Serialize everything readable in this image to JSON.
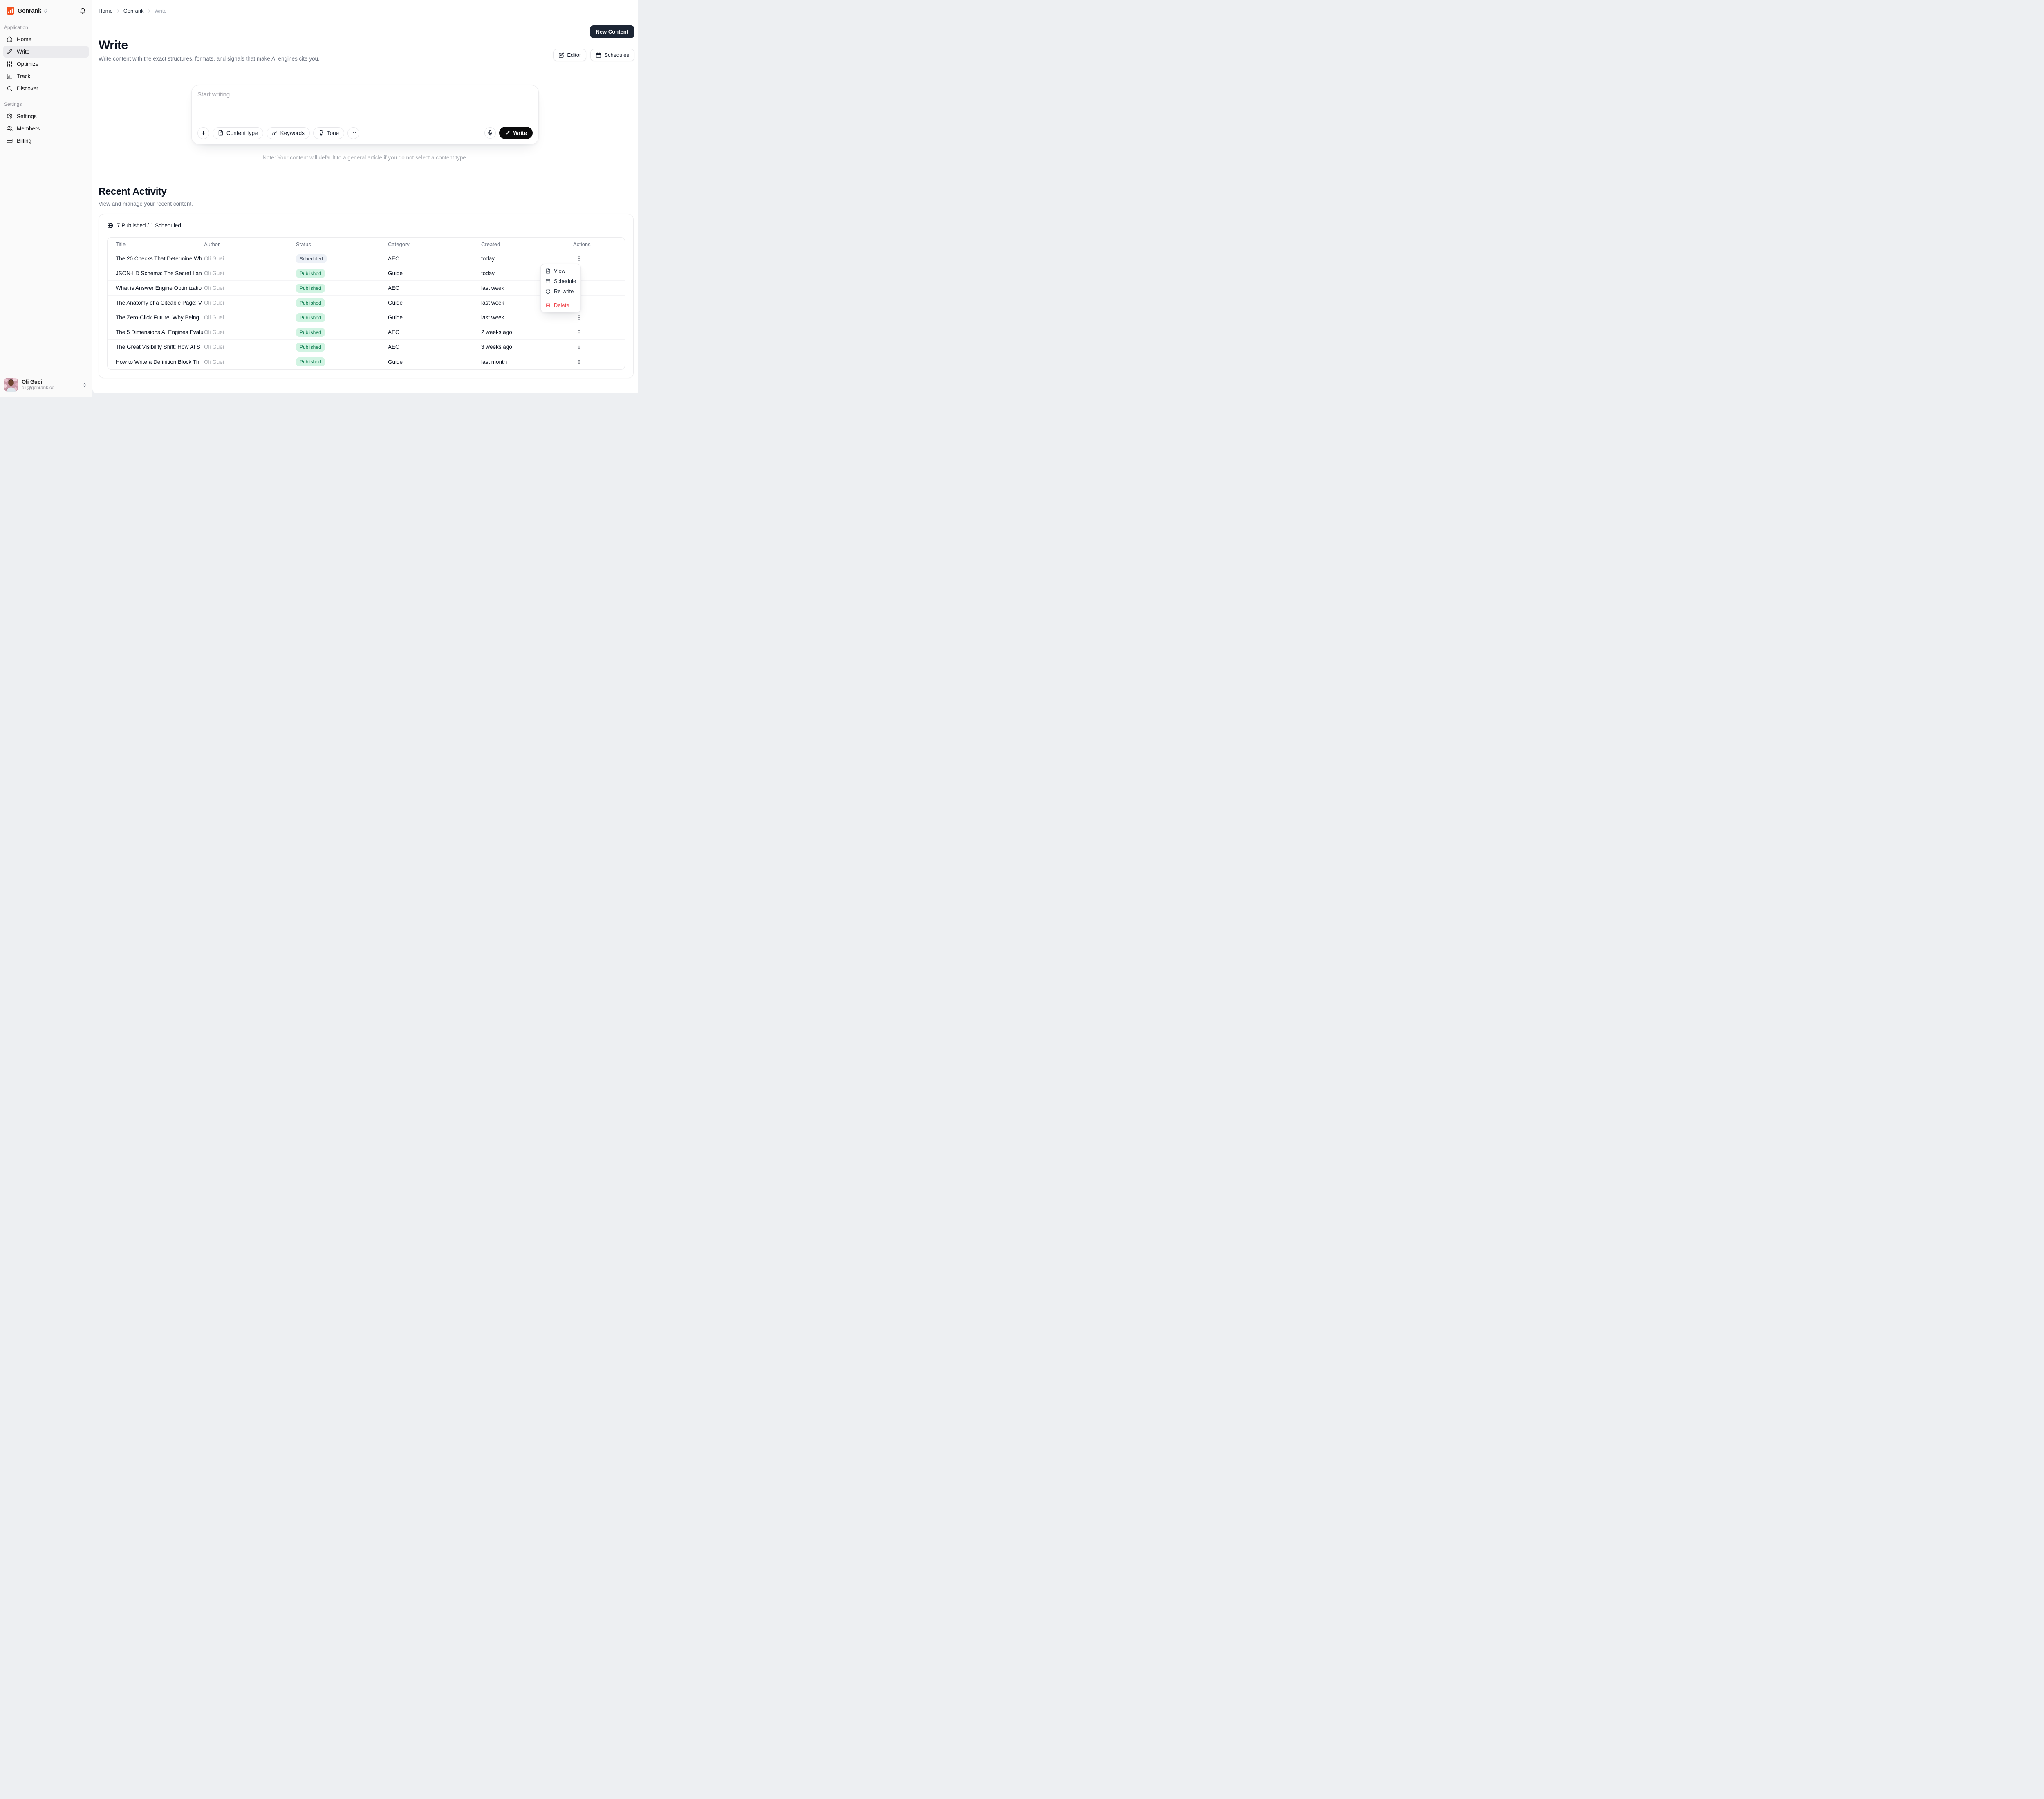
{
  "brand": {
    "name": "Genrank",
    "logo_color": "#f4511e"
  },
  "sidebar": {
    "sections": [
      {
        "label": "Application",
        "items": [
          {
            "label": "Home",
            "icon": "home",
            "active": false
          },
          {
            "label": "Write",
            "icon": "pen",
            "active": true
          },
          {
            "label": "Optimize",
            "icon": "sliders",
            "active": false
          },
          {
            "label": "Track",
            "icon": "chart",
            "active": false
          },
          {
            "label": "Discover",
            "icon": "search",
            "active": false
          }
        ]
      },
      {
        "label": "Settings",
        "items": [
          {
            "label": "Settings",
            "icon": "gear",
            "active": false
          },
          {
            "label": "Members",
            "icon": "users",
            "active": false
          },
          {
            "label": "Billing",
            "icon": "credit-card",
            "active": false
          }
        ]
      }
    ],
    "user": {
      "name": "Oli Guei",
      "email": "oli@genrank.co"
    }
  },
  "breadcrumb": [
    "Home",
    "Genrank",
    "Write"
  ],
  "header": {
    "new_content_label": "New Content",
    "editor_label": "Editor",
    "schedules_label": "Schedules"
  },
  "page": {
    "title": "Write",
    "subtitle": "Write content with the exact structures, formats, and signals that make AI engines cite you."
  },
  "composer": {
    "placeholder": "Start writing...",
    "content_type_label": "Content type",
    "keywords_label": "Keywords",
    "tone_label": "Tone",
    "write_label": "Write",
    "note": "Note: Your content will default to a general article if you do not select a content type."
  },
  "recent": {
    "title": "Recent Activity",
    "subtitle": "View and manage your recent content.",
    "summary": "7 Published / 1 Scheduled",
    "columns": [
      "Title",
      "Author",
      "Status",
      "Category",
      "Created",
      "Actions"
    ],
    "rows": [
      {
        "title": "The 20 Checks That Determine Wh",
        "author": "Oli Guei",
        "status": "Scheduled",
        "category": "AEO",
        "created": "today"
      },
      {
        "title": "JSON-LD Schema: The Secret Lan",
        "author": "Oli Guei",
        "status": "Published",
        "category": "Guide",
        "created": "today"
      },
      {
        "title": "What is Answer Engine Optimizatio",
        "author": "Oli Guei",
        "status": "Published",
        "category": "AEO",
        "created": "last week"
      },
      {
        "title": "The Anatomy of a Citeable Page: V",
        "author": "Oli Guei",
        "status": "Published",
        "category": "Guide",
        "created": "last week"
      },
      {
        "title": "The Zero-Click Future: Why Being",
        "author": "Oli Guei",
        "status": "Published",
        "category": "Guide",
        "created": "last week"
      },
      {
        "title": "The 5 Dimensions AI Engines Evalu",
        "author": "Oli Guei",
        "status": "Published",
        "category": "AEO",
        "created": "2 weeks ago"
      },
      {
        "title": "The Great Visibility Shift: How AI S",
        "author": "Oli Guei",
        "status": "Published",
        "category": "AEO",
        "created": "3 weeks ago"
      },
      {
        "title": "How to Write a Definition Block Th",
        "author": "Oli Guei",
        "status": "Published",
        "category": "Guide",
        "created": "last month"
      }
    ],
    "menu": {
      "items": [
        {
          "label": "View",
          "icon": "file-text"
        },
        {
          "label": "Schedule",
          "icon": "calendar"
        },
        {
          "label": "Re-write",
          "icon": "refresh"
        }
      ],
      "danger": {
        "label": "Delete",
        "icon": "trash"
      }
    },
    "status_colors": {
      "published_bg": "#d2f4e3",
      "published_text": "#0d7a4e",
      "scheduled_bg": "#edf1f7",
      "scheduled_text": "#3d4757"
    }
  }
}
